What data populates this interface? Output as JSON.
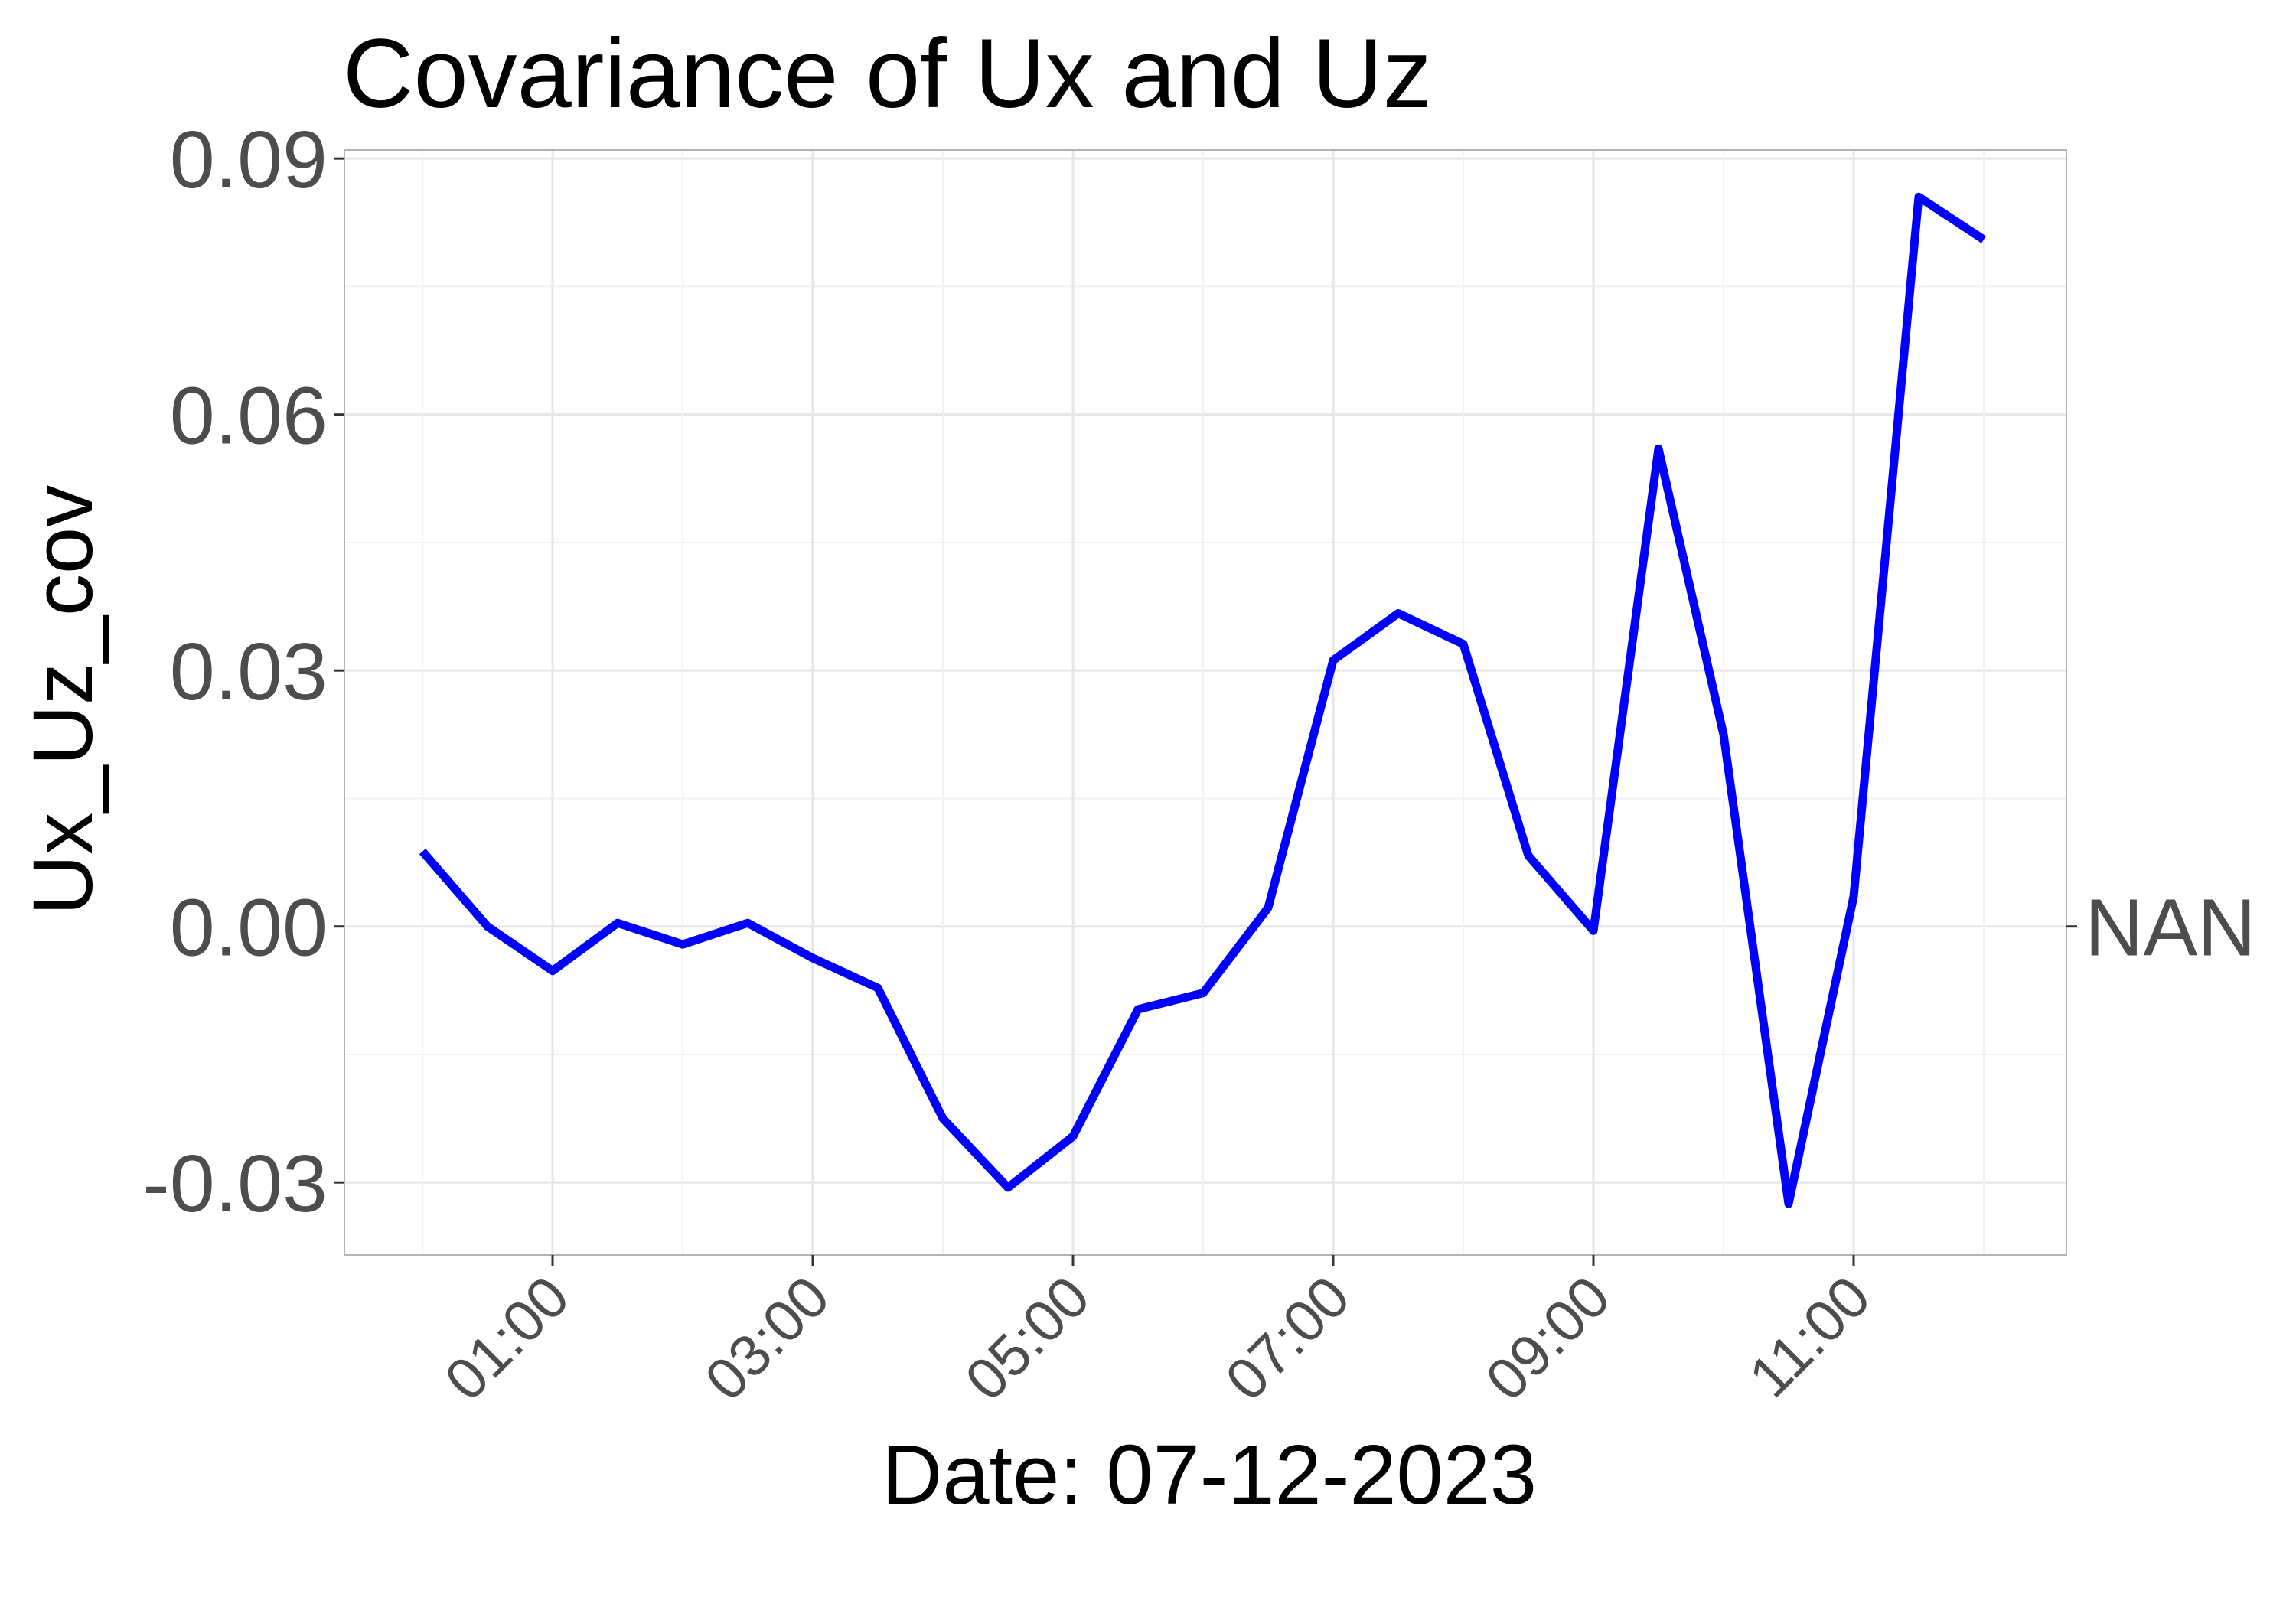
{
  "chart_data": {
    "type": "line",
    "title": "Covariance of Ux and Uz",
    "xlabel": "Date: 07-12-2023",
    "ylabel": "Ux_Uz_cov",
    "secondary_axis_label": "NAN",
    "x_tick_labels": [
      "01:00",
      "03:00",
      "05:00",
      "07:00",
      "09:00",
      "11:00"
    ],
    "y_tick_labels": [
      "-0.03",
      "0.00",
      "0.03",
      "0.06",
      "0.09"
    ],
    "ylim": [
      -0.0385,
      0.091
    ],
    "xlim": [
      "00:00",
      "12:00"
    ],
    "grid": true,
    "legend": "none",
    "series": [
      {
        "color": "#0000ff",
        "x": [
          "00:00",
          "00:30",
          "01:00",
          "01:30",
          "02:00",
          "02:30",
          "03:00",
          "03:30",
          "04:00",
          "04:30",
          "05:00",
          "05:30",
          "06:00",
          "06:30",
          "07:00",
          "07:30",
          "08:00",
          "08:30",
          "09:00",
          "09:30",
          "10:00",
          "10:30",
          "11:00",
          "11:30",
          "12:00"
        ],
        "values": [
          0.0088,
          0.0,
          -0.0052,
          0.0004,
          -0.0021,
          0.0004,
          -0.0037,
          -0.0072,
          -0.0225,
          -0.0306,
          -0.0246,
          -0.0097,
          -0.0078,
          0.0022,
          0.0312,
          0.0367,
          0.0331,
          0.0083,
          -0.0005,
          0.056,
          0.0225,
          -0.0325,
          0.0035,
          0.0855,
          0.0805
        ]
      }
    ]
  }
}
